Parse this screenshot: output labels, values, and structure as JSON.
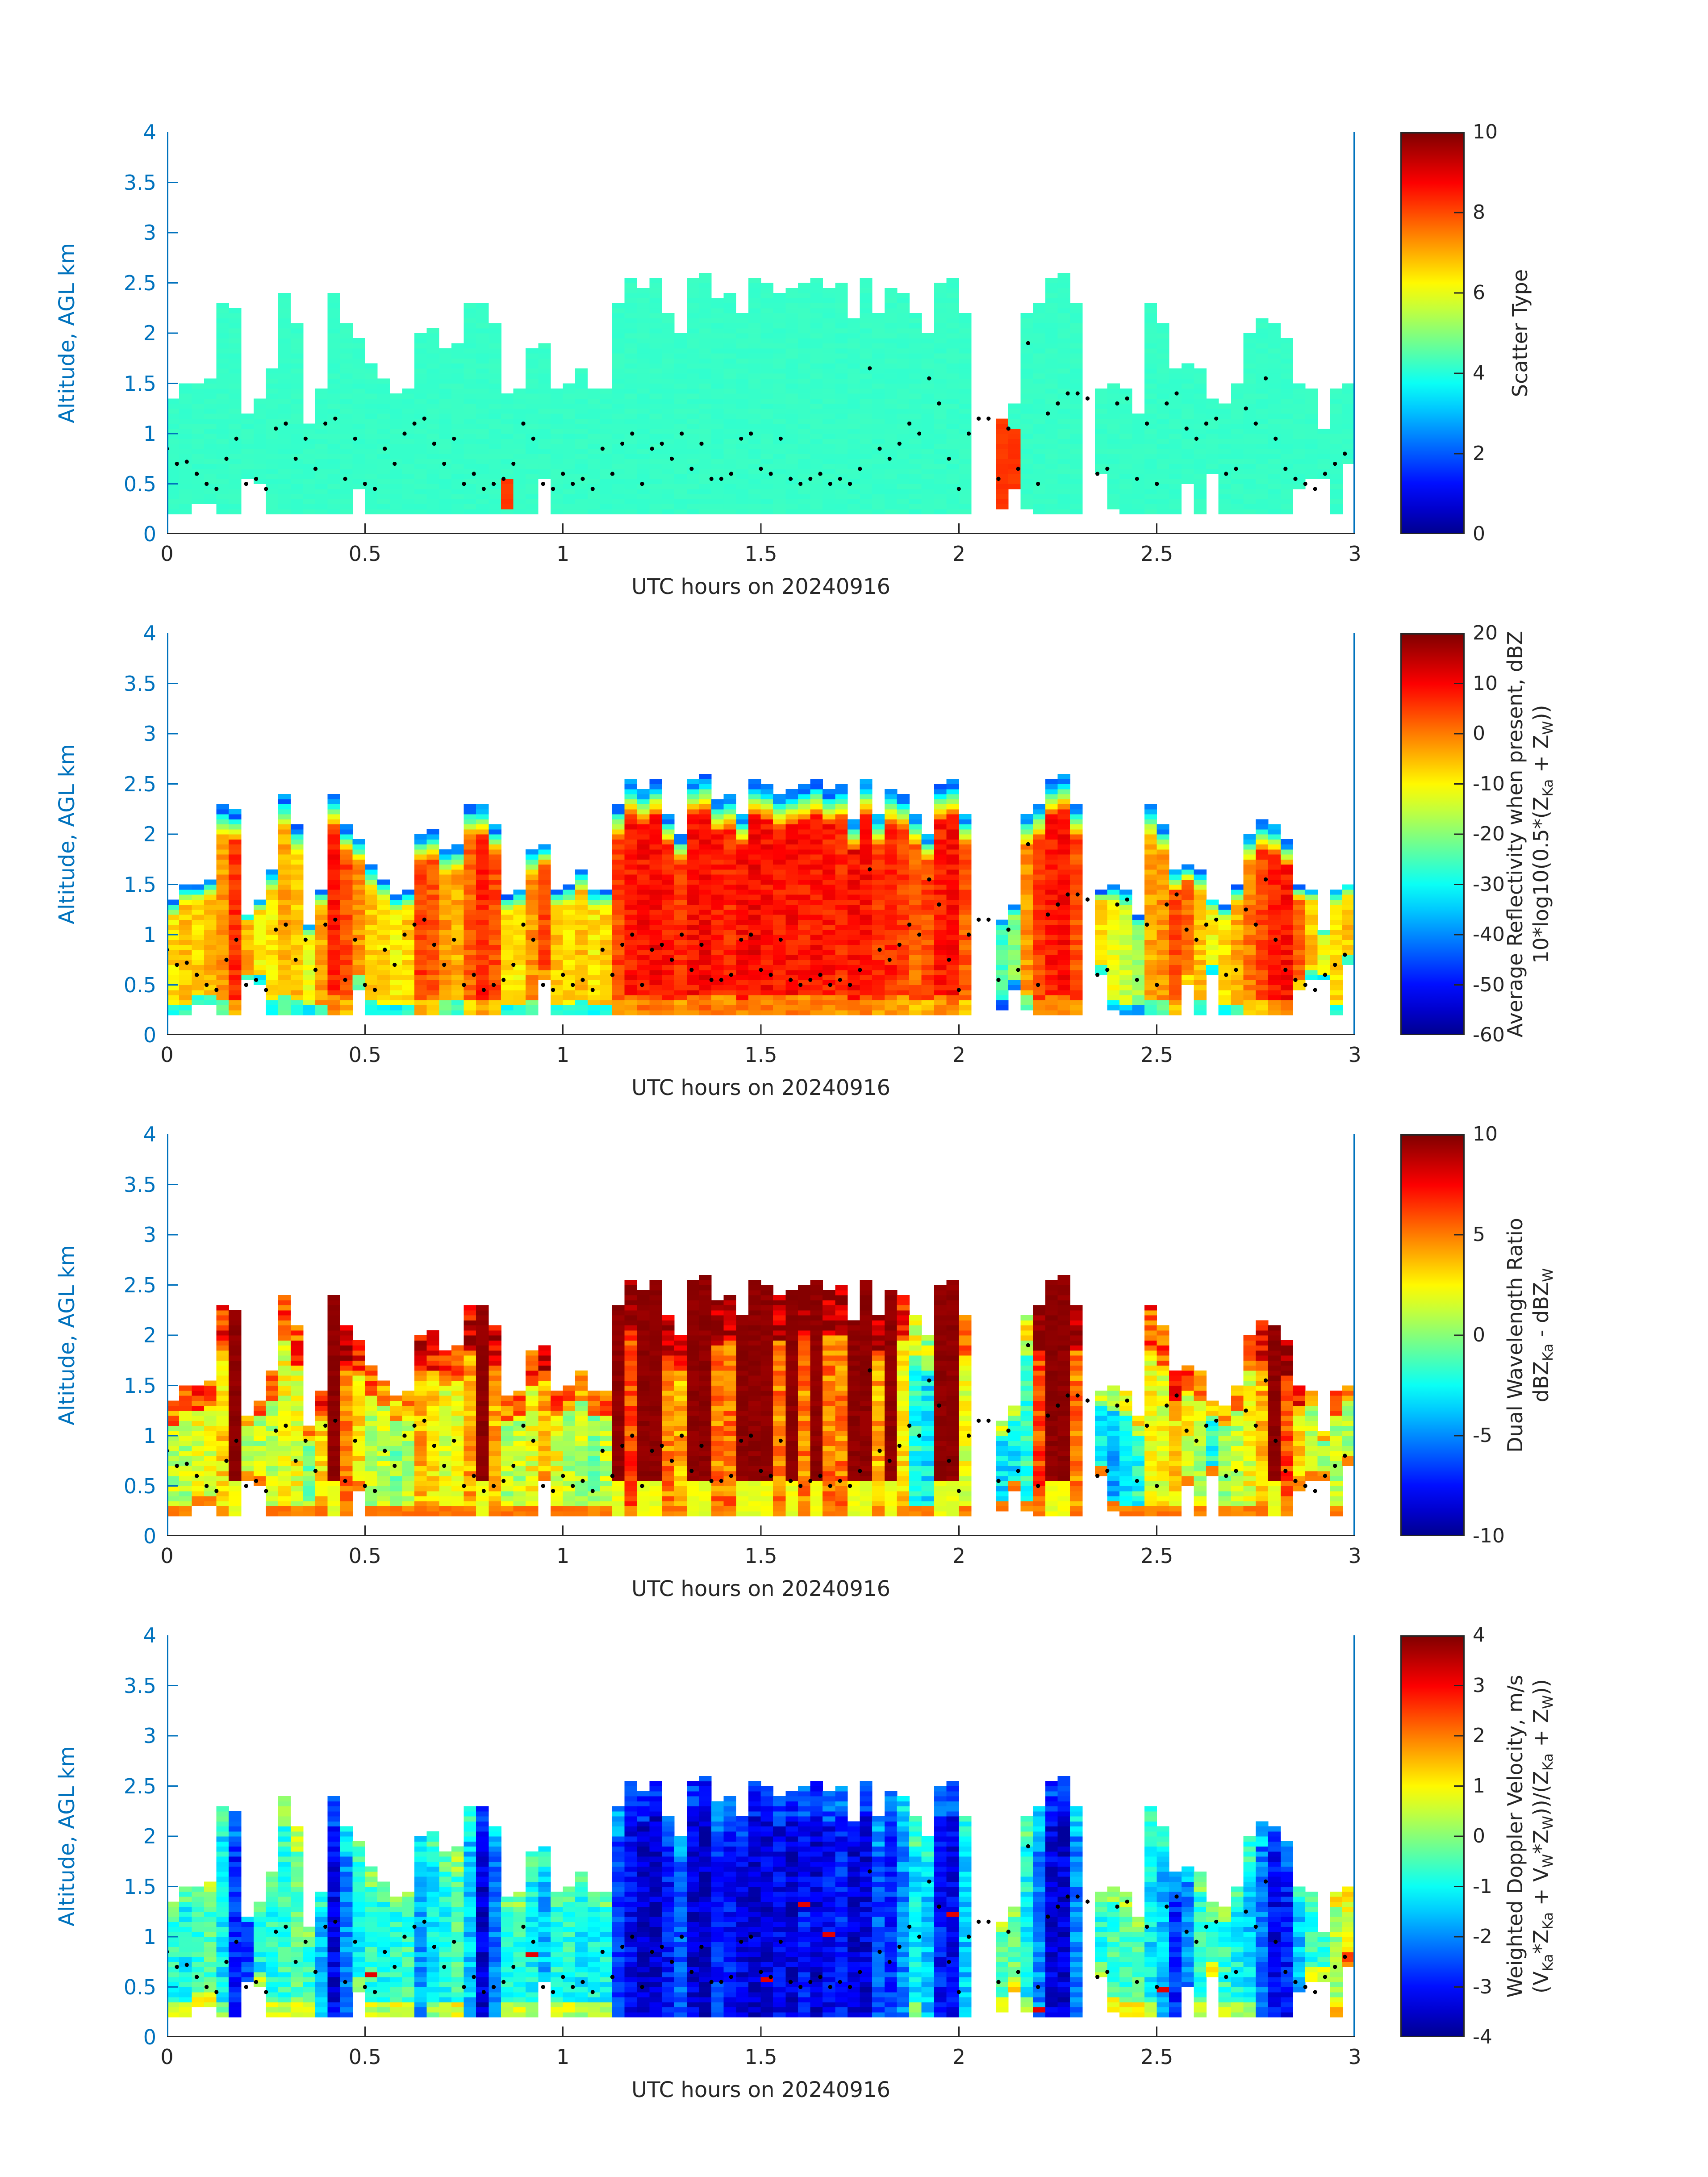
{
  "axes": {
    "ylabel": "Altitude, AGL km",
    "xlabel": "UTC hours on 20240916",
    "ylim": [
      0,
      4
    ],
    "xlim": [
      0,
      3
    ],
    "ytick_values": [
      0,
      0.5,
      1,
      1.5,
      2,
      2.5,
      3,
      3.5,
      4
    ],
    "ytick_labels": [
      "0",
      "0.5",
      "1",
      "1.5",
      "2",
      "2.5",
      "3",
      "3.5",
      "4"
    ],
    "xtick_values": [
      0,
      0.5,
      1,
      1.5,
      2,
      2.5,
      3
    ],
    "xtick_labels": [
      "0",
      "0.5",
      "1",
      "1.5",
      "2",
      "2.5",
      "3"
    ],
    "axis_color": "#0072bd",
    "text_color": "#262626"
  },
  "panels": [
    {
      "name": "scatter-type",
      "clim": [
        0,
        10
      ],
      "tick_values": [
        0,
        2,
        4,
        6,
        8,
        10
      ],
      "tick_labels": [
        "0",
        "2",
        "4",
        "6",
        "8",
        "10"
      ],
      "title_lines": [
        [
          {
            "t": "Scatter Type"
          }
        ]
      ]
    },
    {
      "name": "average-reflectivity",
      "clim": [
        -60,
        20
      ],
      "tick_values": [
        20,
        10,
        0,
        -10,
        -20,
        -30,
        -40,
        -50,
        -60
      ],
      "tick_labels": [
        "20",
        "10",
        "0",
        "-10",
        "-20",
        "-30",
        "-40",
        "-50",
        "-60"
      ],
      "title_lines": [
        [
          {
            "t": "Average Reflectivity when present, dBZ"
          }
        ],
        [
          {
            "t": "10*log10(0.5*(Z"
          },
          {
            "s": "Ka"
          },
          {
            "t": " + Z"
          },
          {
            "s": "W"
          },
          {
            "t": "))"
          }
        ]
      ]
    },
    {
      "name": "dual-wavelength-ratio",
      "clim": [
        -10,
        10
      ],
      "tick_values": [
        10,
        5,
        0,
        -5,
        -10
      ],
      "tick_labels": [
        "10",
        "5",
        "0",
        "-5",
        "-10"
      ],
      "title_lines": [
        [
          {
            "t": "Dual Wavelength Ratio"
          }
        ],
        [
          {
            "t": "dBZ"
          },
          {
            "s": "Ka"
          },
          {
            "t": " - dBZ"
          },
          {
            "s": "W"
          }
        ]
      ]
    },
    {
      "name": "weighted-doppler-velocity",
      "clim": [
        -4,
        4
      ],
      "tick_values": [
        4,
        3,
        2,
        1,
        0,
        -1,
        -2,
        -3,
        -4
      ],
      "tick_labels": [
        "4",
        "3",
        "2",
        "1",
        "0",
        "-1",
        "-2",
        "-3",
        "-4"
      ],
      "title_lines": [
        [
          {
            "t": "Weighted Doppler Velocity, m/s"
          }
        ],
        [
          {
            "t": "(V"
          },
          {
            "s": "Ka"
          },
          {
            "t": "*Z"
          },
          {
            "s": "Ka"
          },
          {
            "t": " + V"
          },
          {
            "s": "W"
          },
          {
            "t": "*Z"
          },
          {
            "s": "W"
          },
          {
            "t": "))/(Z"
          },
          {
            "s": "Ka"
          },
          {
            "t": " + Z"
          },
          {
            "s": "W"
          },
          {
            "t": "))"
          }
        ]
      ]
    }
  ],
  "chart_data": {
    "type": "heatmap",
    "colormap": "jet",
    "x_axis": "UTC hours on 20240916",
    "y_axis": "Altitude, AGL km",
    "xlim": [
      0,
      3
    ],
    "ylim": [
      0,
      4
    ],
    "time_step_hours": 0.03125,
    "altitude_step_km": 0.05,
    "column_fields": [
      "t_hours",
      "cloud_base_km",
      "cloud_top_km",
      "scatter_type",
      "reflectivity_peak_dBZ",
      "dual_wavelength_ratio_dB",
      "doppler_velocity_ms"
    ],
    "columns": [
      [
        0.0,
        0.2,
        1.35,
        4.2,
        -8,
        1,
        -0.8
      ],
      [
        0.031,
        0.2,
        1.5,
        4.2,
        -6,
        1,
        -1.0
      ],
      [
        0.063,
        0.3,
        1.5,
        4.2,
        -7,
        2,
        -0.6
      ],
      [
        0.094,
        0.3,
        1.55,
        4.2,
        -5,
        2,
        -0.5
      ],
      [
        0.125,
        0.2,
        2.3,
        4.2,
        -2,
        3,
        -1.2
      ],
      [
        0.156,
        0.2,
        2.25,
        4.2,
        6,
        9.8,
        -2.8
      ],
      [
        0.188,
        0.55,
        1.2,
        4.2,
        -4,
        1,
        -2.5
      ],
      [
        0.219,
        0.5,
        1.35,
        4.2,
        -10,
        1,
        -1.0
      ],
      [
        0.25,
        0.2,
        1.65,
        4.2,
        -9,
        1,
        -0.8
      ],
      [
        0.281,
        0.2,
        2.4,
        4.2,
        -4,
        2,
        -0.7
      ],
      [
        0.313,
        0.2,
        2.1,
        4.2,
        -6,
        2,
        -0.3
      ],
      [
        0.344,
        0.2,
        1.1,
        4.2,
        -12,
        0,
        -0.6
      ],
      [
        0.375,
        0.2,
        1.45,
        4.2,
        -3,
        3,
        -1.5
      ],
      [
        0.406,
        0.2,
        2.4,
        4.2,
        8,
        9.8,
        -3.3
      ],
      [
        0.438,
        0.2,
        2.1,
        4.2,
        4,
        5,
        -2.0
      ],
      [
        0.469,
        0.45,
        1.95,
        4.2,
        -2,
        3,
        -1.0
      ],
      [
        0.5,
        0.2,
        1.7,
        4.2,
        -6,
        1,
        -0.8
      ],
      [
        0.531,
        0.2,
        1.55,
        4.2,
        -8,
        1,
        -0.9
      ],
      [
        0.563,
        0.2,
        1.4,
        4.2,
        -10,
        0,
        -0.7
      ],
      [
        0.594,
        0.2,
        1.45,
        4.2,
        -7,
        1,
        -0.6
      ],
      [
        0.625,
        0.2,
        2.0,
        4.2,
        5,
        4,
        -1.8
      ],
      [
        0.656,
        0.2,
        2.05,
        4.2,
        3,
        3,
        -1.2
      ],
      [
        0.688,
        0.2,
        1.85,
        4.2,
        -2,
        2,
        -0.9
      ],
      [
        0.719,
        0.2,
        1.9,
        4.2,
        -4,
        2,
        -0.5
      ],
      [
        0.75,
        0.2,
        2.3,
        4.2,
        2,
        4,
        -1.5
      ],
      [
        0.781,
        0.2,
        2.3,
        4.2,
        7,
        9.8,
        -3.4
      ],
      [
        0.813,
        0.2,
        2.1,
        4.2,
        4,
        4,
        -2.2
      ],
      [
        0.844,
        0.2,
        1.4,
        4.2,
        -8,
        1,
        -0.8
      ],
      [
        0.875,
        0.2,
        1.45,
        4.2,
        -9,
        1,
        -0.7
      ],
      [
        0.906,
        0.2,
        1.85,
        4.2,
        -2,
        2,
        -1.0
      ],
      [
        0.938,
        0.55,
        1.9,
        4.2,
        5,
        4,
        -1.6
      ],
      [
        0.969,
        0.2,
        1.45,
        4.2,
        -6,
        2,
        -0.9
      ],
      [
        1.0,
        0.2,
        1.5,
        4.2,
        -8,
        1,
        -0.8
      ],
      [
        1.031,
        0.2,
        1.65,
        4.2,
        -5,
        1,
        -1.1
      ],
      [
        1.063,
        0.2,
        1.45,
        4.2,
        -9,
        0,
        -0.9
      ],
      [
        1.094,
        0.2,
        1.45,
        4.2,
        -7,
        1,
        -1.0
      ],
      [
        1.125,
        0.2,
        2.3,
        4.2,
        4,
        9.8,
        -2.6
      ],
      [
        1.156,
        0.2,
        2.55,
        4.2,
        8,
        6,
        -3.2
      ],
      [
        1.188,
        0.2,
        2.45,
        4.2,
        9,
        9.8,
        -3.5
      ],
      [
        1.219,
        0.2,
        2.55,
        4.2,
        10,
        9.8,
        -3.6
      ],
      [
        1.25,
        0.2,
        2.2,
        4.2,
        8,
        5,
        -3.0
      ],
      [
        1.281,
        0.2,
        2.0,
        4.2,
        6,
        4,
        -2.4
      ],
      [
        1.313,
        0.2,
        2.55,
        4.2,
        9,
        9.8,
        -3.4
      ],
      [
        1.344,
        0.2,
        2.6,
        4.2,
        10,
        9.8,
        -3.6
      ],
      [
        1.375,
        0.2,
        2.35,
        4.2,
        8,
        5,
        -2.8
      ],
      [
        1.406,
        0.2,
        2.4,
        4.2,
        7,
        5,
        -3.0
      ],
      [
        1.438,
        0.2,
        2.2,
        4.2,
        9,
        9.8,
        -3.3
      ],
      [
        1.469,
        0.2,
        2.55,
        4.2,
        10,
        9.8,
        -3.5
      ],
      [
        1.5,
        0.2,
        2.5,
        4.2,
        9,
        9.8,
        -3.4
      ],
      [
        1.531,
        0.2,
        2.4,
        4.2,
        8,
        5,
        -3.2
      ],
      [
        1.563,
        0.2,
        2.45,
        4.2,
        9,
        9.8,
        -3.5
      ],
      [
        1.594,
        0.2,
        2.5,
        4.2,
        8,
        5,
        -3.0
      ],
      [
        1.625,
        0.2,
        2.55,
        4.2,
        9,
        9.8,
        -3.4
      ],
      [
        1.656,
        0.2,
        2.45,
        4.2,
        8,
        5,
        -3.1
      ],
      [
        1.688,
        0.2,
        2.5,
        4.2,
        7,
        5,
        -2.9
      ],
      [
        1.719,
        0.2,
        2.15,
        4.2,
        9,
        9.8,
        -3.5
      ],
      [
        1.75,
        0.2,
        2.55,
        4.2,
        9,
        9.8,
        -3.4
      ],
      [
        1.781,
        0.2,
        2.2,
        4.2,
        6,
        4,
        -2.5
      ],
      [
        1.813,
        0.2,
        2.45,
        4.2,
        7,
        9.8,
        -2.8
      ],
      [
        1.844,
        0.2,
        2.4,
        4.2,
        5,
        3,
        -2.0
      ],
      [
        1.875,
        0.2,
        2.2,
        4.2,
        2,
        -2,
        -1.2
      ],
      [
        1.906,
        0.2,
        2.0,
        4.2,
        4,
        -3,
        -1.5
      ],
      [
        1.938,
        0.2,
        2.5,
        4.2,
        8,
        9.8,
        -3.0
      ],
      [
        1.969,
        0.2,
        2.55,
        4.2,
        9,
        9.8,
        -3.2
      ],
      [
        2.0,
        0.2,
        2.2,
        4.2,
        3,
        2,
        -1.5
      ],
      [
        2.031,
        -1,
        -1,
        0,
        0,
        0,
        0
      ],
      [
        2.063,
        -1,
        -1,
        0,
        0,
        0,
        0
      ],
      [
        2.094,
        0.25,
        1.15,
        8.2,
        -25,
        -3,
        -0.5
      ],
      [
        2.125,
        0.45,
        1.3,
        4.2,
        -20,
        -3,
        -0.3
      ],
      [
        2.156,
        0.25,
        2.2,
        4.2,
        -2,
        -2,
        -1.0
      ],
      [
        2.188,
        0.2,
        2.3,
        4.2,
        5,
        6,
        -2.0
      ],
      [
        2.219,
        0.2,
        2.55,
        4.2,
        8,
        9.8,
        -3.3
      ],
      [
        2.25,
        0.2,
        2.6,
        4.2,
        9,
        9.8,
        -3.5
      ],
      [
        2.281,
        0.2,
        2.3,
        4.2,
        4,
        5,
        -2.0
      ],
      [
        2.313,
        -1,
        -1,
        0,
        0,
        0,
        0
      ],
      [
        2.344,
        0.6,
        1.45,
        4.2,
        -8,
        -3,
        -0.8
      ],
      [
        2.375,
        0.25,
        1.5,
        4.2,
        -12,
        -4,
        -0.6
      ],
      [
        2.406,
        0.2,
        1.45,
        4.2,
        -15,
        -3,
        -0.5
      ],
      [
        2.438,
        0.2,
        1.2,
        4.2,
        -18,
        -2,
        -0.4
      ],
      [
        2.469,
        0.2,
        2.3,
        4.2,
        -4,
        2,
        -1.2
      ],
      [
        2.5,
        0.2,
        2.1,
        4.2,
        -2,
        2,
        -1.5
      ],
      [
        2.531,
        0.2,
        1.65,
        4.2,
        4,
        3,
        -2.8
      ],
      [
        2.563,
        0.5,
        1.7,
        4.2,
        2,
        2,
        -2.0
      ],
      [
        2.594,
        0.2,
        1.65,
        4.2,
        -6,
        1,
        -0.8
      ],
      [
        2.625,
        0.6,
        1.35,
        4.2,
        -10,
        -2,
        -0.6
      ],
      [
        2.656,
        0.2,
        1.3,
        4.2,
        -8,
        0,
        -0.7
      ],
      [
        2.688,
        0.2,
        1.5,
        4.2,
        -4,
        1,
        -1.0
      ],
      [
        2.719,
        0.2,
        2.0,
        4.2,
        0,
        2,
        -1.4
      ],
      [
        2.75,
        0.2,
        2.15,
        4.2,
        4,
        4,
        -2.2
      ],
      [
        2.781,
        0.2,
        2.1,
        4.2,
        8,
        9.8,
        -3.2
      ],
      [
        2.813,
        0.2,
        1.95,
        4.2,
        9,
        6,
        -3.0
      ],
      [
        2.844,
        0.45,
        1.5,
        4.2,
        3,
        3,
        -1.5
      ],
      [
        2.875,
        0.55,
        1.45,
        4.2,
        -6,
        1,
        -0.8
      ],
      [
        2.906,
        0.55,
        1.05,
        4.2,
        -12,
        0,
        -0.5
      ],
      [
        2.938,
        0.2,
        1.45,
        4.2,
        -8,
        1,
        0.3
      ],
      [
        2.969,
        0.7,
        1.5,
        4.2,
        -6,
        1,
        0.8
      ]
    ],
    "red_scatter_segments": {
      "27": [
        0.25,
        0.55
      ],
      "67": [
        0.25,
        1.15
      ],
      "68": [
        0.45,
        1.05
      ]
    },
    "dots": [
      [
        0.0,
        0.85
      ],
      [
        0.025,
        0.7
      ],
      [
        0.05,
        0.72
      ],
      [
        0.075,
        0.6
      ],
      [
        0.1,
        0.5
      ],
      [
        0.125,
        0.45
      ],
      [
        0.15,
        0.75
      ],
      [
        0.175,
        0.95
      ],
      [
        0.2,
        0.5
      ],
      [
        0.225,
        0.55
      ],
      [
        0.25,
        0.45
      ],
      [
        0.275,
        1.05
      ],
      [
        0.3,
        1.1
      ],
      [
        0.325,
        0.75
      ],
      [
        0.35,
        0.95
      ],
      [
        0.375,
        0.65
      ],
      [
        0.4,
        1.1
      ],
      [
        0.425,
        1.15
      ],
      [
        0.45,
        0.55
      ],
      [
        0.475,
        0.95
      ],
      [
        0.5,
        0.5
      ],
      [
        0.525,
        0.45
      ],
      [
        0.55,
        0.85
      ],
      [
        0.575,
        0.7
      ],
      [
        0.6,
        1.0
      ],
      [
        0.625,
        1.1
      ],
      [
        0.65,
        1.15
      ],
      [
        0.675,
        0.9
      ],
      [
        0.7,
        0.7
      ],
      [
        0.725,
        0.95
      ],
      [
        0.75,
        0.5
      ],
      [
        0.775,
        0.6
      ],
      [
        0.8,
        0.45
      ],
      [
        0.825,
        0.5
      ],
      [
        0.85,
        0.55
      ],
      [
        0.875,
        0.7
      ],
      [
        0.9,
        1.1
      ],
      [
        0.925,
        0.95
      ],
      [
        0.95,
        0.5
      ],
      [
        0.975,
        0.45
      ],
      [
        1.0,
        0.6
      ],
      [
        1.025,
        0.5
      ],
      [
        1.05,
        0.55
      ],
      [
        1.075,
        0.45
      ],
      [
        1.1,
        0.85
      ],
      [
        1.125,
        0.6
      ],
      [
        1.15,
        0.9
      ],
      [
        1.175,
        1.0
      ],
      [
        1.2,
        0.5
      ],
      [
        1.225,
        0.85
      ],
      [
        1.25,
        0.9
      ],
      [
        1.275,
        0.75
      ],
      [
        1.3,
        1.0
      ],
      [
        1.325,
        0.65
      ],
      [
        1.35,
        0.9
      ],
      [
        1.375,
        0.55
      ],
      [
        1.4,
        0.55
      ],
      [
        1.425,
        0.6
      ],
      [
        1.45,
        0.95
      ],
      [
        1.475,
        1.0
      ],
      [
        1.5,
        0.65
      ],
      [
        1.525,
        0.6
      ],
      [
        1.55,
        0.95
      ],
      [
        1.575,
        0.55
      ],
      [
        1.6,
        0.5
      ],
      [
        1.625,
        0.55
      ],
      [
        1.65,
        0.6
      ],
      [
        1.675,
        0.5
      ],
      [
        1.7,
        0.55
      ],
      [
        1.725,
        0.5
      ],
      [
        1.75,
        0.65
      ],
      [
        1.775,
        1.65
      ],
      [
        1.8,
        0.85
      ],
      [
        1.825,
        0.75
      ],
      [
        1.85,
        0.9
      ],
      [
        1.875,
        1.1
      ],
      [
        1.9,
        1.0
      ],
      [
        1.925,
        1.55
      ],
      [
        1.95,
        1.3
      ],
      [
        1.975,
        0.75
      ],
      [
        2.0,
        0.45
      ],
      [
        2.025,
        1.0
      ],
      [
        2.05,
        1.15
      ],
      [
        2.075,
        1.15
      ],
      [
        2.1,
        0.55
      ],
      [
        2.125,
        1.05
      ],
      [
        2.15,
        0.65
      ],
      [
        2.175,
        1.9
      ],
      [
        2.2,
        0.5
      ],
      [
        2.225,
        1.2
      ],
      [
        2.25,
        1.3
      ],
      [
        2.275,
        1.4
      ],
      [
        2.3,
        1.4
      ],
      [
        2.325,
        1.35
      ],
      [
        2.35,
        0.6
      ],
      [
        2.375,
        0.65
      ],
      [
        2.4,
        1.3
      ],
      [
        2.425,
        1.35
      ],
      [
        2.45,
        0.55
      ],
      [
        2.475,
        1.1
      ],
      [
        2.5,
        0.5
      ],
      [
        2.525,
        1.3
      ],
      [
        2.55,
        1.4
      ],
      [
        2.575,
        1.05
      ],
      [
        2.6,
        0.95
      ],
      [
        2.625,
        1.1
      ],
      [
        2.65,
        1.15
      ],
      [
        2.675,
        0.6
      ],
      [
        2.7,
        0.65
      ],
      [
        2.725,
        1.25
      ],
      [
        2.75,
        1.1
      ],
      [
        2.775,
        1.55
      ],
      [
        2.8,
        0.95
      ],
      [
        2.825,
        0.65
      ],
      [
        2.85,
        0.55
      ],
      [
        2.875,
        0.5
      ],
      [
        2.9,
        0.45
      ],
      [
        2.925,
        0.6
      ],
      [
        2.95,
        0.7
      ],
      [
        2.975,
        0.8
      ]
    ]
  }
}
